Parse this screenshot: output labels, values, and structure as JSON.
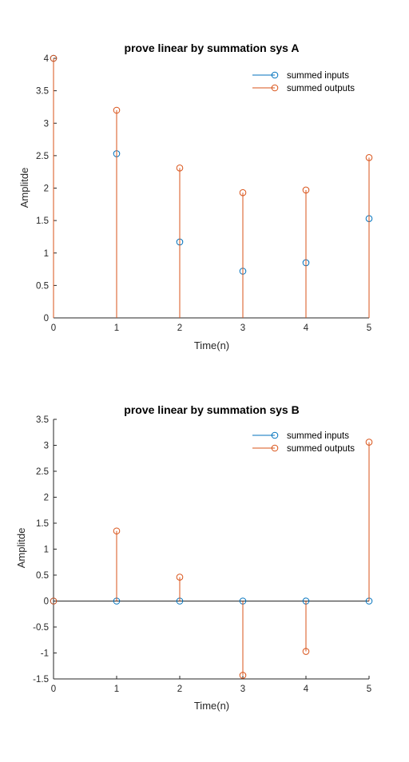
{
  "colors": {
    "inputs": "#0072BD",
    "outputs": "#D95319"
  },
  "chart_data": [
    {
      "type": "stem",
      "title": "prove linear by summation sys A",
      "xlabel": "Time(n)",
      "ylabel": "Amplitde",
      "xlim": [
        0,
        5
      ],
      "ylim": [
        0,
        4
      ],
      "xticks": [
        "0",
        "1",
        "2",
        "3",
        "4",
        "5"
      ],
      "yticks": [
        "0",
        "0.5",
        "1",
        "1.5",
        "2",
        "2.5",
        "3",
        "3.5",
        "4"
      ],
      "legend_position": "top-right",
      "x": [
        0,
        1,
        2,
        3,
        4,
        5
      ],
      "series": [
        {
          "name": "summed inputs",
          "color": "#0072BD",
          "values": [
            4,
            2.53,
            1.17,
            0.72,
            0.85,
            1.53
          ]
        },
        {
          "name": "summed outputs",
          "color": "#D95319",
          "values": [
            4,
            3.2,
            2.31,
            1.93,
            1.97,
            2.47
          ]
        }
      ]
    },
    {
      "type": "stem",
      "title": "prove linear by summation sys B",
      "xlabel": "Time(n)",
      "ylabel": "Amplitde",
      "xlim": [
        0,
        5
      ],
      "ylim": [
        -1.5,
        3.5
      ],
      "xticks": [
        "0",
        "1",
        "2",
        "3",
        "4",
        "5"
      ],
      "yticks": [
        "-1.5",
        "-1",
        "-0.5",
        "0",
        "0.5",
        "1",
        "1.5",
        "2",
        "2.5",
        "3",
        "3.5"
      ],
      "legend_position": "top-right",
      "x": [
        0,
        1,
        2,
        3,
        4,
        5
      ],
      "series": [
        {
          "name": "summed inputs",
          "color": "#0072BD",
          "values": [
            0,
            0,
            0,
            0,
            0,
            0
          ]
        },
        {
          "name": "summed outputs",
          "color": "#D95319",
          "values": [
            0,
            1.35,
            0.46,
            -1.43,
            -0.97,
            3.06
          ]
        }
      ]
    }
  ]
}
